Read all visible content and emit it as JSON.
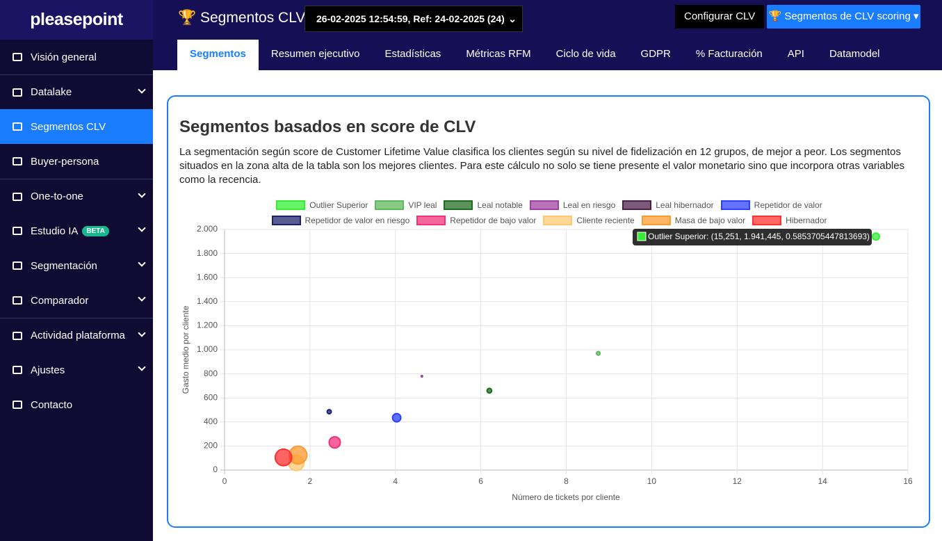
{
  "sidebar": {
    "logo": "pleasepoint",
    "badge": "BETA",
    "menu": [
      "Visión general",
      "Datalake",
      "Segmentos CLV",
      "Buyer-persona",
      "One-to-one",
      "Estudio IA",
      "Segmentación",
      "Comparador",
      "Actividad plataforma",
      "Ajustes",
      "Contacto"
    ]
  },
  "header": {
    "title": "Segmentos CLV",
    "select": "26-02-2025 12:54:59, Ref: 24-02-2025 (24)",
    "configure": "Configurar CLV",
    "scoring": "Segmentos de CLV scoring"
  },
  "tabs": [
    "Segmentos",
    "Resumen ejecutivo",
    "Estadísticas",
    "Métricas RFM",
    "Ciclo de vida",
    "GDPR",
    "% Facturación",
    "API",
    "Datamodel"
  ],
  "card": {
    "title": "Segmentos basados en score de CLV",
    "description": "La segmentación según score de Customer Lifetime Value clasifica los clientes según su nivel de fidelización en 12 grupos, de mejor a peor. Los segmentos situados en la zona alta de la tabla son los mejores clientes. Para este cálculo no solo se tiene presente el valor monetario sino que incorpora otras variables como la recencia."
  },
  "chart_data": {
    "type": "bubble",
    "x_label": "Número de tickets por cliente",
    "y_label": "Gasto medio por cliente",
    "tooltip": "Outlier Superior: (15,251, 1.941,445, 0.5853705447813693)",
    "xlim": [
      0,
      16
    ],
    "xticks": [
      0,
      2,
      4,
      6,
      8,
      10,
      12,
      14,
      16
    ],
    "ylim": [
      0,
      2000
    ],
    "yticks": [
      0,
      200,
      400,
      600,
      800,
      {
        "value": 1000,
        "label": "1.000"
      },
      {
        "value": 1200,
        "label": "1.200"
      },
      {
        "value": 1400,
        "label": "1.400"
      },
      {
        "value": 1600,
        "label": "1.600"
      },
      {
        "value": 1800,
        "label": "1.800"
      },
      {
        "value": 2000,
        "label": "2.000"
      }
    ],
    "grid": true,
    "series": [
      {
        "name": "Outlier Superior",
        "color": "#33ee33",
        "x": [
          15.251
        ],
        "values": [
          1941.445
        ],
        "sizes": [
          0.5853705447813693
        ]
      },
      {
        "name": "VIP leal",
        "color": "#5cb85c",
        "x": [
          8.75
        ],
        "values": [
          970
        ],
        "sizes": [
          0.3
        ]
      },
      {
        "name": "Leal notable",
        "color": "#1e6b1e",
        "x": [
          6.2
        ],
        "values": [
          660
        ],
        "sizes": [
          0.4
        ]
      },
      {
        "name": "Leal en riesgo",
        "color": "#a040a0",
        "x": [
          4.62
        ],
        "values": [
          780
        ],
        "sizes": [
          0.12
        ]
      },
      {
        "name": "Leal hibernador",
        "color": "#4a1f4a",
        "x": [
          null
        ],
        "values": [
          null
        ],
        "sizes": [
          null
        ]
      },
      {
        "name": "Repetidor de valor",
        "color": "#2a3fff",
        "x": [
          4.03
        ],
        "values": [
          435
        ],
        "sizes": [
          0.7
        ]
      },
      {
        "name": "Repetidor de valor en riesgo",
        "color": "#1c1f6b",
        "x": [
          2.45
        ],
        "values": [
          485
        ],
        "sizes": [
          0.35
        ]
      },
      {
        "name": "Repetidor de bajo valor",
        "color": "#f0307a",
        "x": [
          2.58
        ],
        "values": [
          230
        ],
        "sizes": [
          0.95
        ]
      },
      {
        "name": "Cliente reciente",
        "color": "#ffc870",
        "x": [
          1.68
        ],
        "values": [
          60
        ],
        "sizes": [
          1.3
        ]
      },
      {
        "name": "Masa de bajo valor",
        "color": "#ff9a2e",
        "x": [
          1.72
        ],
        "values": [
          125
        ],
        "sizes": [
          1.5
        ]
      },
      {
        "name": "Hibernador",
        "color": "#ff3030",
        "x": [
          1.38
        ],
        "values": [
          105
        ],
        "sizes": [
          1.4
        ]
      }
    ]
  }
}
